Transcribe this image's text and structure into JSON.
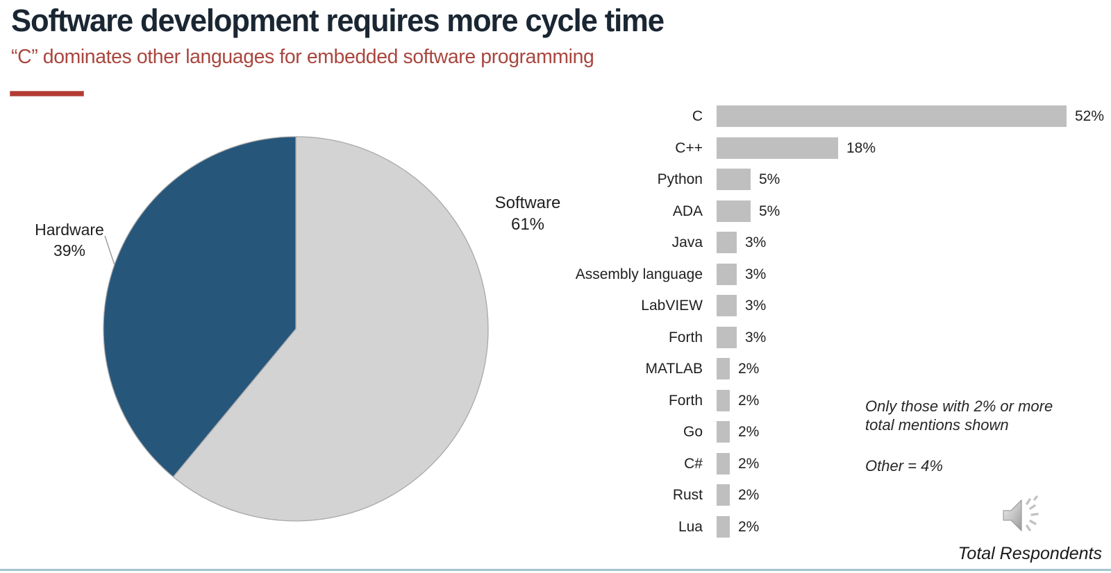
{
  "slide": {
    "title": "Software development requires more cycle time",
    "subtitle": "“C” dominates other languages for embedded software programming",
    "notes": {
      "filter_note": "Only those with 2% or more total mentions shown",
      "other_note": "Other = 4%"
    },
    "footer_label": "Total Respondents",
    "icons": {
      "speaker": "speaker-audio-icon"
    }
  },
  "colors": {
    "title": "#1b2633",
    "subtitle": "#a9463e",
    "accent_bar": "#b23b33",
    "pie_software": "#d3d3d3",
    "pie_hardware": "#27567b",
    "pie_stroke": "#a8a8a8",
    "bar_fill": "#bfbfbf",
    "text": "#1f1f1f",
    "bottom_rule": "#a5c3ce"
  },
  "chart_data": [
    {
      "type": "pie",
      "title": "Hardware vs software share of cycle time",
      "start_angle_deg": 0,
      "direction": "clockwise",
      "slices": [
        {
          "label": "Software",
          "value": 61,
          "pct": "61%",
          "color_key": "pie_software"
        },
        {
          "label": "Hardware",
          "value": 39,
          "pct": "39%",
          "color_key": "pie_hardware"
        }
      ]
    },
    {
      "type": "bar",
      "title": "Embedded software programming languages",
      "orientation": "horizontal",
      "unit": "%",
      "xlim": [
        0,
        55
      ],
      "grid": false,
      "legend": "none",
      "categories": [
        "C",
        "C++",
        "Python",
        "ADA",
        "Java",
        "Assembly language",
        "LabVIEW",
        "Forth",
        "MATLAB",
        "Forth",
        "Go",
        "C#",
        "Rust",
        "Lua"
      ],
      "values": [
        52,
        18,
        5,
        5,
        3,
        3,
        3,
        3,
        2,
        2,
        2,
        2,
        2,
        2
      ]
    }
  ]
}
